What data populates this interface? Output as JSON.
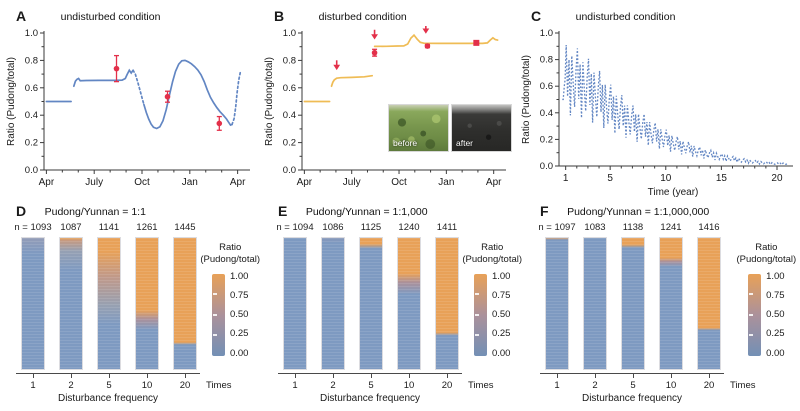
{
  "colors": {
    "line_blue": "#6286c3",
    "line_orange": "#efbc55",
    "marker_red": "#e3304a",
    "bar_blue": "#7e9ac1",
    "bar_orange": "#e8a158",
    "bar_mid": "#ab919b",
    "axis": "#3a3a3a"
  },
  "chart_data": [
    {
      "id": "A",
      "panel_label": "A",
      "type": "line",
      "title": "undisturbed condition",
      "ylabel": "Ratio (Pudong/total)",
      "ylim": [
        0,
        1
      ],
      "y_ticks": [
        "0.0",
        "0.2",
        "0.4",
        "0.6",
        "0.8",
        "1.0"
      ],
      "xlim": [
        -0.15,
        12.4
      ],
      "x_major": [
        0,
        3,
        6,
        9,
        12
      ],
      "x_tick_labels": [
        "Apr",
        "July",
        "Oct",
        "Jan",
        "Apr"
      ],
      "x_minor_step": 1,
      "line_color": "#6286c3",
      "segments": [
        {
          "style": "solid",
          "points": [
            [
              0,
              0.5
            ],
            [
              1.55,
              0.5
            ]
          ]
        },
        {
          "style": "solid",
          "points": [
            [
              1.72,
              0.612
            ],
            [
              1.82,
              0.648
            ],
            [
              1.92,
              0.662
            ],
            [
              2.02,
              0.668
            ],
            [
              2.12,
              0.652
            ],
            [
              2.5,
              0.653
            ],
            [
              3.3,
              0.654
            ],
            [
              4.3,
              0.654
            ],
            [
              4.75,
              0.656
            ],
            [
              4.95,
              0.668
            ],
            [
              5.08,
              0.7
            ],
            [
              5.2,
              0.728
            ],
            [
              5.32,
              0.708
            ],
            [
              5.44,
              0.728
            ]
          ]
        },
        {
          "style": "dotted",
          "points": [
            [
              5.44,
              0.728
            ],
            [
              5.58,
              0.7
            ],
            [
              5.72,
              0.648
            ],
            [
              5.87,
              0.585
            ],
            [
              6.02,
              0.52
            ],
            [
              6.12,
              0.478
            ]
          ]
        },
        {
          "style": "solid",
          "points": [
            [
              6.12,
              0.478
            ],
            [
              6.27,
              0.42
            ],
            [
              6.42,
              0.372
            ],
            [
              6.57,
              0.335
            ],
            [
              6.72,
              0.312
            ],
            [
              6.92,
              0.303
            ],
            [
              7.12,
              0.315
            ],
            [
              7.32,
              0.36
            ],
            [
              7.52,
              0.44
            ],
            [
              7.72,
              0.545
            ],
            [
              7.92,
              0.645
            ],
            [
              8.1,
              0.72
            ],
            [
              8.3,
              0.772
            ],
            [
              8.5,
              0.797
            ],
            [
              8.7,
              0.8
            ],
            [
              8.9,
              0.79
            ],
            [
              9.1,
              0.775
            ],
            [
              9.3,
              0.755
            ],
            [
              9.5,
              0.73
            ],
            [
              9.7,
              0.695
            ],
            [
              9.9,
              0.645
            ],
            [
              10.1,
              0.585
            ],
            [
              10.3,
              0.53
            ],
            [
              10.5,
              0.49
            ],
            [
              10.7,
              0.455
            ],
            [
              10.9,
              0.425
            ],
            [
              11.1,
              0.4
            ],
            [
              11.3,
              0.372
            ],
            [
              11.45,
              0.345
            ],
            [
              11.55,
              0.328
            ],
            [
              11.65,
              0.332
            ]
          ]
        },
        {
          "style": "dotted",
          "points": [
            [
              11.65,
              0.332
            ],
            [
              11.78,
              0.375
            ],
            [
              11.88,
              0.46
            ],
            [
              11.97,
              0.565
            ],
            [
              12.07,
              0.655
            ],
            [
              12.18,
              0.72
            ]
          ]
        }
      ],
      "markers": [
        {
          "type": "circle_err",
          "x": 4.4,
          "y": 0.74,
          "err": 0.095
        },
        {
          "type": "circle_err",
          "x": 7.6,
          "y": 0.535,
          "err": 0.04
        },
        {
          "type": "circle_err",
          "x": 10.85,
          "y": 0.34,
          "err": 0.05
        }
      ]
    },
    {
      "id": "B",
      "panel_label": "B",
      "type": "line",
      "title": "disturbed condition",
      "ylabel": "Ratio (Pudong/total)",
      "ylim": [
        0,
        1
      ],
      "y_ticks": [
        "0.0",
        "0.2",
        "0.4",
        "0.6",
        "0.8",
        "1.0"
      ],
      "xlim": [
        -0.15,
        12.4
      ],
      "x_major": [
        0,
        3,
        6,
        9,
        12
      ],
      "x_tick_labels": [
        "Apr",
        "July",
        "Oct",
        "Jan",
        "Apr"
      ],
      "x_minor_step": 1,
      "line_color": "#efbc55",
      "segments": [
        {
          "style": "solid",
          "points": [
            [
              0,
              0.5
            ],
            [
              1.6,
              0.5
            ]
          ]
        },
        {
          "style": "solid",
          "points": [
            [
              1.72,
              0.612
            ],
            [
              1.8,
              0.64
            ],
            [
              1.9,
              0.658
            ],
            [
              2.05,
              0.67
            ],
            [
              2.3,
              0.674
            ],
            [
              3.0,
              0.676
            ],
            [
              3.8,
              0.68
            ],
            [
              4.3,
              0.688
            ]
          ]
        },
        {
          "style": "solid",
          "points": [
            [
              4.45,
              0.902
            ],
            [
              5.2,
              0.903
            ],
            [
              5.9,
              0.905
            ],
            [
              6.3,
              0.906
            ],
            [
              6.55,
              0.92
            ],
            [
              6.75,
              0.963
            ],
            [
              6.95,
              0.985
            ],
            [
              7.15,
              0.955
            ],
            [
              7.35,
              0.932
            ],
            [
              7.6,
              0.925
            ],
            [
              8.5,
              0.924
            ],
            [
              9.5,
              0.924
            ],
            [
              10.5,
              0.924
            ],
            [
              11.3,
              0.924
            ],
            [
              11.6,
              0.928
            ],
            [
              11.8,
              0.95
            ],
            [
              11.95,
              0.965
            ],
            [
              12.1,
              0.952
            ],
            [
              12.25,
              0.948
            ]
          ]
        }
      ],
      "markers": [
        {
          "type": "tri_down",
          "x": 2.05,
          "y": 0.735
        },
        {
          "type": "tri_down",
          "x": 4.45,
          "y": 0.958
        },
        {
          "type": "tri_down",
          "x": 7.7,
          "y": 1.0
        },
        {
          "type": "circle_err",
          "x": 4.45,
          "y": 0.856,
          "err": 0.025
        },
        {
          "type": "circle_err",
          "x": 7.8,
          "y": 0.905,
          "err": 0.012
        },
        {
          "type": "square",
          "x": 10.9,
          "y": 0.928
        }
      ],
      "inset": {
        "before_label": "before",
        "after_label": "after"
      }
    },
    {
      "id": "C",
      "panel_label": "C",
      "type": "line",
      "title": "undisturbed condition",
      "ylabel": "Ratio (Pudong/total)",
      "xlabel": "Time (year)",
      "ylim": [
        0,
        1
      ],
      "y_ticks": [
        "0.0",
        "0.2",
        "0.4",
        "0.6",
        "0.8",
        "1.0"
      ],
      "xlim": [
        0.4,
        20.9
      ],
      "x_major": [
        1,
        5,
        10,
        15,
        20
      ],
      "x_tick_labels": [
        "1",
        "5",
        "10",
        "15",
        "20"
      ],
      "x_minor_step": 1,
      "line_color": "#6286c3",
      "line_style": "dotted",
      "lead_in": [
        [
          0.7,
          0.5
        ],
        [
          0.78,
          0.5
        ],
        [
          0.88,
          0.6
        ],
        [
          0.95,
          0.65
        ]
      ],
      "x_start": 1.05,
      "dt": 0.125,
      "y_cap": 0.93,
      "annual_means": [
        0.7,
        0.68,
        0.62,
        0.55,
        0.47,
        0.41,
        0.35,
        0.3,
        0.25,
        0.21,
        0.17,
        0.14,
        0.11,
        0.09,
        0.07,
        0.055,
        0.042,
        0.032,
        0.024,
        0.018
      ],
      "pattern": [
        1.3,
        0.75,
        1.15,
        0.55,
        1.2,
        0.9,
        0.65,
        1.05
      ],
      "markers": []
    },
    {
      "id": "D",
      "panel_label": "D",
      "type": "bar",
      "title": "Pudong/Yunnan = 1:1",
      "n_prefix": "n = ",
      "n_values": [
        1093,
        1087,
        1141,
        1261,
        1445
      ],
      "categories": [
        "1",
        "2",
        "5",
        "10",
        "20"
      ],
      "x_unit": "Times",
      "xlabel": "Disturbance frequency",
      "legend": {
        "title_line1": "Ratio",
        "title_line2": "(Pudong/total)",
        "ticks": [
          "1.00",
          "0.75",
          "0.50",
          "0.25",
          "0.00"
        ],
        "gradient": [
          [
            0,
            "#e8a158"
          ],
          [
            0.5,
            "#ab919b"
          ],
          [
            1,
            "#7390b5"
          ]
        ]
      },
      "bars": [
        [
          [
            0,
            "#939cb7"
          ],
          [
            0.12,
            "#7e9ac1"
          ],
          [
            1,
            "#7e9ac1"
          ]
        ],
        [
          [
            0,
            "#e8a158"
          ],
          [
            0.02,
            "#c59a82"
          ],
          [
            0.1,
            "#96a0b3"
          ],
          [
            0.25,
            "#7e9ac1"
          ],
          [
            1,
            "#7e9ac1"
          ]
        ],
        [
          [
            0,
            "#e8a158"
          ],
          [
            0.1,
            "#e8a158"
          ],
          [
            0.3,
            "#c0998a"
          ],
          [
            0.52,
            "#96a0b2"
          ],
          [
            0.66,
            "#7e9ac1"
          ],
          [
            1,
            "#7e9ac1"
          ]
        ],
        [
          [
            0,
            "#e8a158"
          ],
          [
            0.55,
            "#e8a158"
          ],
          [
            0.62,
            "#ab919b"
          ],
          [
            0.7,
            "#7e9ac1"
          ],
          [
            1,
            "#7e9ac1"
          ]
        ],
        [
          [
            0,
            "#e8a158"
          ],
          [
            0.795,
            "#e8a158"
          ],
          [
            0.815,
            "#7e9ac1"
          ],
          [
            1,
            "#7e9ac1"
          ]
        ]
      ]
    },
    {
      "id": "E",
      "panel_label": "E",
      "type": "bar",
      "title": "Pudong/Yunnan = 1:1,000",
      "n_prefix": "n = ",
      "n_values": [
        1094,
        1086,
        1125,
        1240,
        1411
      ],
      "categories": [
        "1",
        "2",
        "5",
        "10",
        "20"
      ],
      "x_unit": "Times",
      "xlabel": "Disturbance frequency",
      "legend": {
        "title_line1": "Ratio",
        "title_line2": "(Pudong/total)",
        "ticks": [
          "1.00",
          "0.75",
          "0.50",
          "0.25",
          "0.00"
        ],
        "gradient": [
          [
            0,
            "#e8a158"
          ],
          [
            0.5,
            "#ab919b"
          ],
          [
            1,
            "#7390b5"
          ]
        ]
      },
      "bars": [
        [
          [
            0,
            "#7e9ac1"
          ],
          [
            1,
            "#7e9ac1"
          ]
        ],
        [
          [
            0,
            "#8797b9"
          ],
          [
            0.04,
            "#7e9ac1"
          ],
          [
            1,
            "#7e9ac1"
          ]
        ],
        [
          [
            0,
            "#e8a158"
          ],
          [
            0.045,
            "#e8a158"
          ],
          [
            0.08,
            "#7e9ac1"
          ],
          [
            1,
            "#7e9ac1"
          ]
        ],
        [
          [
            0,
            "#e8a158"
          ],
          [
            0.27,
            "#e8a158"
          ],
          [
            0.34,
            "#ab919b"
          ],
          [
            0.43,
            "#7e9ac1"
          ],
          [
            1,
            "#7e9ac1"
          ]
        ],
        [
          [
            0,
            "#e8a158"
          ],
          [
            0.72,
            "#e8a158"
          ],
          [
            0.745,
            "#7e9ac1"
          ],
          [
            1,
            "#7e9ac1"
          ]
        ]
      ]
    },
    {
      "id": "F",
      "panel_label": "F",
      "type": "bar",
      "title": "Pudong/Yunnan = 1:1,000,000",
      "n_prefix": "n = ",
      "n_values": [
        1097,
        1083,
        1138,
        1241,
        1416
      ],
      "categories": [
        "1",
        "2",
        "5",
        "10",
        "20"
      ],
      "x_unit": "Times",
      "xlabel": "Disturbance frequency",
      "legend": {
        "title_line1": "Ratio",
        "title_line2": "(Pudong/total)",
        "ticks": [
          "1.00",
          "0.75",
          "0.50",
          "0.25",
          "0.00"
        ],
        "gradient": [
          [
            0,
            "#e8a158"
          ],
          [
            0.5,
            "#ab919b"
          ],
          [
            1,
            "#7390b5"
          ]
        ]
      },
      "bars": [
        [
          [
            0,
            "#d09c6f"
          ],
          [
            0.015,
            "#7e9ac1"
          ],
          [
            1,
            "#7e9ac1"
          ]
        ],
        [
          [
            0,
            "#7e9ac1"
          ],
          [
            1,
            "#7e9ac1"
          ]
        ],
        [
          [
            0,
            "#e8a158"
          ],
          [
            0.05,
            "#e8a158"
          ],
          [
            0.075,
            "#7e9ac1"
          ],
          [
            1,
            "#7e9ac1"
          ]
        ],
        [
          [
            0,
            "#e8a158"
          ],
          [
            0.15,
            "#e8a158"
          ],
          [
            0.18,
            "#ab919b"
          ],
          [
            0.22,
            "#7e9ac1"
          ],
          [
            1,
            "#7e9ac1"
          ]
        ],
        [
          [
            0,
            "#e8a158"
          ],
          [
            0.685,
            "#e8a158"
          ],
          [
            0.705,
            "#7e9ac1"
          ],
          [
            1,
            "#7e9ac1"
          ]
        ]
      ]
    }
  ]
}
